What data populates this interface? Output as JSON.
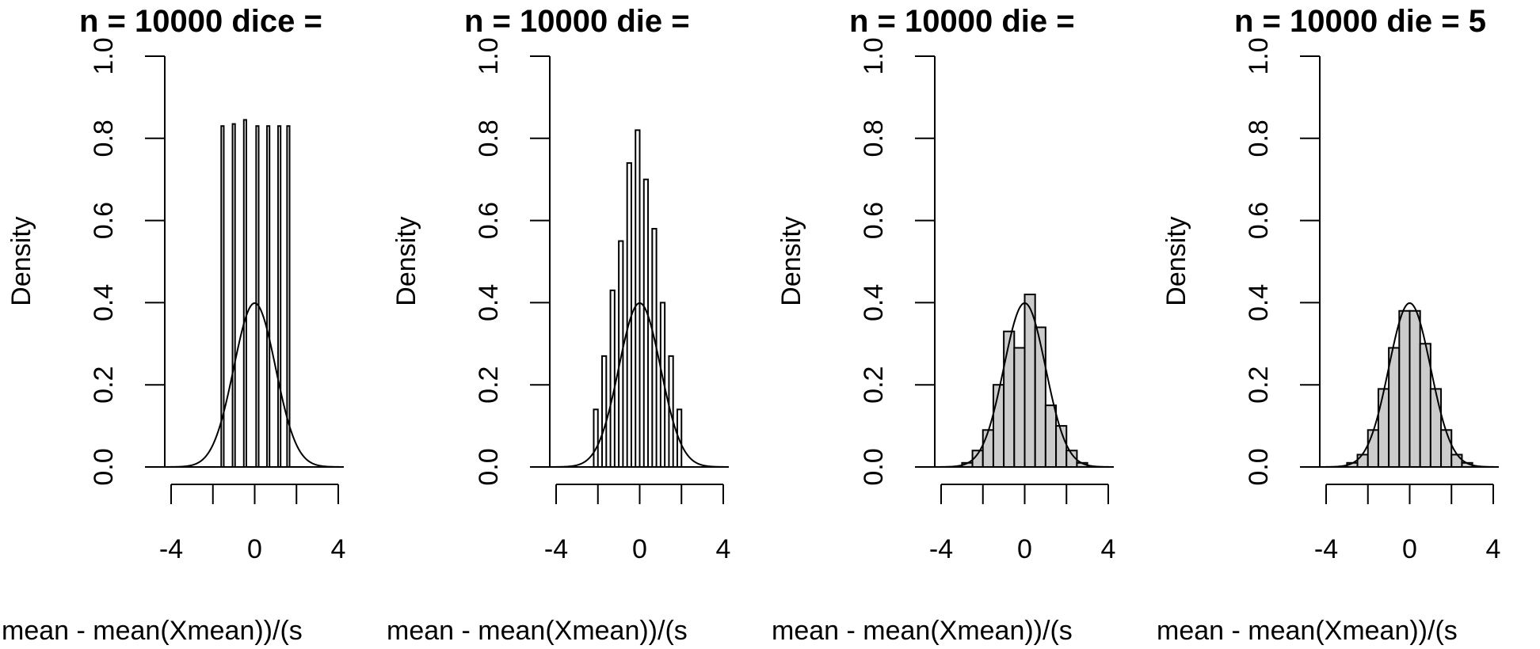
{
  "chart_data": [
    {
      "type": "bar",
      "title": "n = 10000 dice =",
      "xlabel": "mean - mean(Xmean))/(s",
      "ylabel": "Density",
      "xlim": [
        -4,
        4
      ],
      "ylim": [
        0,
        1
      ],
      "xticks": [
        "-4",
        "0",
        "4"
      ],
      "xticks_values": [
        -4,
        0,
        4
      ],
      "yticks": [
        "0.0",
        "0.2",
        "0.4",
        "0.6",
        "0.8",
        "1.0"
      ],
      "yticks_values": [
        0,
        0.2,
        0.4,
        0.6,
        0.8,
        1.0
      ],
      "bin_edges": [
        -1.6,
        -1.48,
        -1.06,
        -0.94,
        -0.52,
        -0.4,
        0.07,
        0.19,
        0.59,
        0.71,
        1.12,
        1.24,
        1.55,
        1.67
      ],
      "bin_density": [
        0.83,
        0,
        0.835,
        0,
        0.845,
        0,
        0.83,
        0,
        0.83,
        0,
        0.83,
        0,
        0.83
      ],
      "bar_fill": "#ffffff",
      "curve": "standard-normal-density"
    },
    {
      "type": "bar",
      "title": "n = 10000 die =",
      "xlabel": "mean - mean(Xmean))/(s",
      "ylabel": "Density",
      "xlim": [
        -4,
        4
      ],
      "ylim": [
        0,
        1
      ],
      "xticks": [
        "-4",
        "0",
        "4"
      ],
      "xticks_values": [
        -4,
        0,
        4
      ],
      "yticks": [
        "0.0",
        "0.2",
        "0.4",
        "0.6",
        "0.8",
        "1.0"
      ],
      "yticks_values": [
        0,
        0.2,
        0.4,
        0.6,
        0.8,
        1.0
      ],
      "bin_edges": [
        -2.2,
        -2.0,
        -1.8,
        -1.6,
        -1.4,
        -1.2,
        -1.0,
        -0.8,
        -0.6,
        -0.4,
        -0.2,
        0.0,
        0.2,
        0.4,
        0.6,
        0.8,
        1.0,
        1.2,
        1.4,
        1.6,
        1.8,
        2.0,
        2.2
      ],
      "bin_density": [
        0.14,
        0.0,
        0.27,
        0.0,
        0.43,
        0.0,
        0.55,
        0.0,
        0.74,
        0.0,
        0.82,
        0.0,
        0.7,
        0.0,
        0.58,
        0.0,
        0.4,
        0.0,
        0.27,
        0.0,
        0.14,
        0.0
      ],
      "bar_fill": "#ffffff",
      "curve": "standard-normal-density"
    },
    {
      "type": "bar",
      "title": "n = 10000 die =",
      "xlabel": "mean - mean(Xmean))/(s",
      "ylabel": "Density",
      "xlim": [
        -4,
        4
      ],
      "ylim": [
        0,
        1
      ],
      "xticks": [
        "-4",
        "0",
        "4"
      ],
      "xticks_values": [
        -4,
        0,
        4
      ],
      "yticks": [
        "0.0",
        "0.2",
        "0.4",
        "0.6",
        "0.8",
        "1.0"
      ],
      "yticks_values": [
        0,
        0.2,
        0.4,
        0.6,
        0.8,
        1.0
      ],
      "bin_edges": [
        -3.0,
        -2.5,
        -2.0,
        -1.5,
        -1.0,
        -0.5,
        0.0,
        0.5,
        1.0,
        1.5,
        2.0,
        2.5,
        3.0
      ],
      "bin_density": [
        0.01,
        0.04,
        0.09,
        0.2,
        0.33,
        0.29,
        0.42,
        0.34,
        0.15,
        0.1,
        0.04,
        0.01
      ],
      "bar_fill": "#cccccc",
      "curve": "standard-normal-density"
    },
    {
      "type": "bar",
      "title": "n = 10000 die = 5",
      "xlabel": "mean - mean(Xmean))/(s",
      "ylabel": "Density",
      "xlim": [
        -4,
        4
      ],
      "ylim": [
        0,
        1
      ],
      "xticks": [
        "-4",
        "0",
        "4"
      ],
      "xticks_values": [
        -4,
        0,
        4
      ],
      "yticks": [
        "0.0",
        "0.2",
        "0.4",
        "0.6",
        "0.8",
        "1.0"
      ],
      "yticks_values": [
        0,
        0.2,
        0.4,
        0.6,
        0.8,
        1.0
      ],
      "bin_edges": [
        -3.0,
        -2.5,
        -2.0,
        -1.5,
        -1.0,
        -0.5,
        0.0,
        0.5,
        1.0,
        1.5,
        2.0,
        2.5,
        3.0
      ],
      "bin_density": [
        0.01,
        0.03,
        0.09,
        0.19,
        0.29,
        0.38,
        0.38,
        0.3,
        0.19,
        0.09,
        0.03,
        0.01
      ],
      "bar_fill": "#cccccc",
      "curve": "standard-normal-density"
    }
  ]
}
